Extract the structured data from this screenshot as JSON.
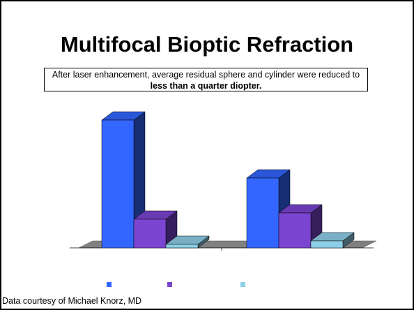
{
  "title": "Multifocal Bioptic Refraction",
  "note": {
    "text": "After laser enhancement, average residual sphere and cylinder were reduced to ",
    "bold": "less than a quarter diopter."
  },
  "footer": "Data courtesy of Michael Knorz, MD",
  "chart_data": {
    "type": "bar3d",
    "categories": [
      null,
      null
    ],
    "series": [
      {
        "color": "#3366ff",
        "values": [
          1.83,
          1.0
        ]
      },
      {
        "color": "#7b45d1",
        "values": [
          0.41,
          0.5
        ]
      },
      {
        "color": "#8ecfe8",
        "values": [
          0.05,
          0.1
        ]
      }
    ]
  }
}
